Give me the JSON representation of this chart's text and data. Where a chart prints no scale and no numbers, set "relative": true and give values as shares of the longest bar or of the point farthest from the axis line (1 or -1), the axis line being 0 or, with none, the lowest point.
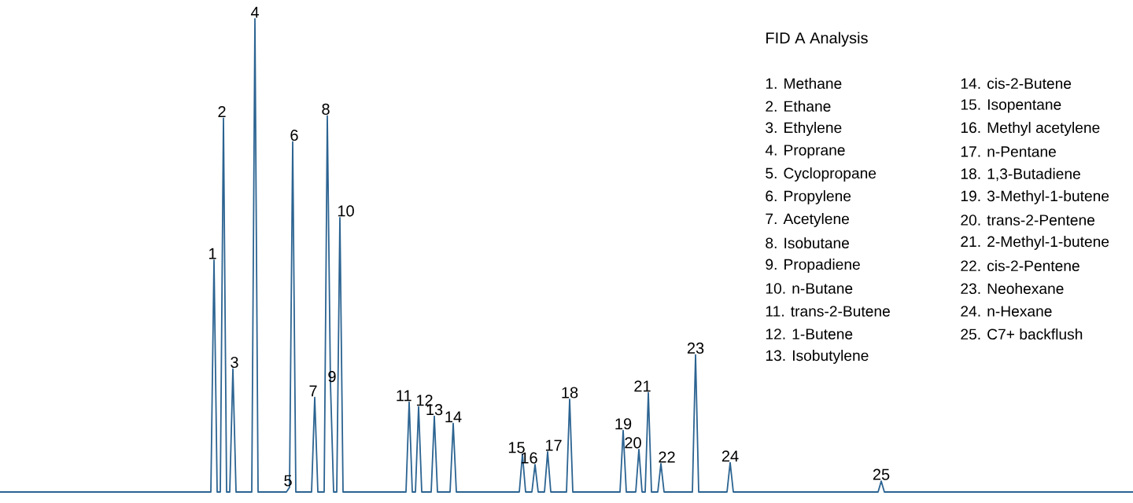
{
  "chart_data": {
    "type": "line",
    "relative": true,
    "title": "FID A Analysis",
    "color": "#2b6391",
    "categories": [
      null,
      null,
      null,
      null,
      null,
      null,
      null,
      null,
      null,
      null,
      null,
      null,
      null,
      null,
      null,
      null,
      null,
      null,
      null,
      null,
      null,
      null,
      null,
      null,
      null,
      null,
      null,
      null,
      null,
      null,
      null,
      null,
      null,
      null,
      null,
      null,
      null,
      null,
      null,
      null,
      null,
      null,
      null,
      null,
      null,
      null,
      null,
      null,
      null,
      null,
      null,
      null,
      null,
      null,
      null,
      null,
      null,
      null,
      null,
      null,
      null,
      null,
      null,
      null,
      null,
      null,
      null,
      null,
      null,
      null,
      null,
      null,
      null,
      null,
      null,
      null,
      null,
      null,
      null,
      null,
      null,
      null,
      null,
      null,
      null,
      null,
      null,
      null,
      null,
      null,
      null,
      null,
      null,
      null,
      null,
      null,
      null,
      null,
      null,
      null,
      null,
      null,
      null,
      null,
      null,
      null,
      null,
      null,
      null,
      null,
      null,
      null,
      null,
      null,
      null,
      null,
      null,
      null,
      null,
      null,
      null,
      null,
      null,
      null,
      null,
      null,
      null,
      null,
      null,
      null,
      null,
      null,
      null,
      null,
      null,
      null,
      null,
      null,
      null,
      null,
      null,
      null,
      null,
      null,
      null,
      null,
      null,
      null,
      null,
      null,
      null,
      null,
      null,
      null,
      null,
      null,
      null,
      null,
      null,
      null,
      null,
      null,
      null,
      null,
      null,
      null,
      null,
      null,
      null,
      null,
      null,
      null,
      null,
      null,
      null,
      null,
      null,
      null,
      null,
      null,
      null,
      null,
      null,
      null,
      null,
      null,
      null,
      null,
      null,
      null,
      null,
      null,
      null,
      null,
      null,
      null,
      null,
      null,
      null,
      null,
      null,
      null,
      null,
      null,
      null,
      null,
      null,
      null,
      null,
      null,
      null,
      null,
      null,
      null,
      null,
      null,
      null,
      null,
      null,
      null,
      null,
      null,
      null,
      null,
      null,
      null,
      null,
      null,
      null,
      null,
      null,
      null,
      null,
      null,
      null,
      null,
      null,
      null,
      null,
      null,
      null,
      null,
      null,
      null,
      null,
      null,
      null,
      null,
      null,
      null,
      null,
      null,
      null,
      null,
      null,
      null,
      null,
      null,
      null,
      null,
      null,
      null,
      null,
      null,
      null,
      null,
      null,
      null,
      null,
      null,
      null,
      null,
      null,
      null,
      null,
      null,
      null,
      null,
      null,
      null,
      null,
      null,
      null,
      null,
      null,
      null,
      null,
      null,
      null,
      null,
      null,
      null,
      null,
      null,
      null,
      null,
      null,
      null,
      null,
      null,
      null,
      null,
      null,
      null,
      null,
      null,
      null,
      null,
      null,
      null,
      null,
      null,
      null,
      null,
      null,
      null,
      null,
      null,
      null,
      null,
      null,
      null,
      null,
      null,
      null,
      null,
      null,
      null,
      null,
      null,
      null,
      null,
      null,
      null,
      null,
      null,
      null,
      null,
      null,
      null,
      null,
      null,
      null,
      null,
      null,
      null,
      null,
      null,
      null,
      null,
      null,
      null,
      null,
      null,
      null,
      null,
      null,
      null,
      null,
      null,
      null
    ],
    "values": [
      0,
      0,
      0,
      0,
      0,
      0,
      0,
      0,
      0,
      0,
      0,
      0,
      0,
      0,
      0,
      0,
      0,
      0,
      0,
      0,
      0,
      0,
      0,
      0,
      0,
      0,
      0,
      0,
      0,
      0,
      0,
      0,
      0,
      0,
      0,
      0,
      0,
      0,
      0,
      0,
      0,
      0,
      0,
      0,
      0,
      0,
      0,
      0,
      0,
      0,
      0,
      0,
      0,
      0,
      0,
      0,
      0,
      0,
      0,
      0,
      0,
      0,
      0,
      0,
      0,
      0,
      0,
      0,
      0.49,
      0,
      0,
      0.79,
      0,
      0,
      0.26,
      0,
      0,
      0,
      0,
      0,
      0,
      1,
      0,
      0,
      0,
      0,
      0,
      0,
      0,
      0,
      0,
      0,
      0.01,
      0.74,
      0,
      0,
      0,
      0,
      0,
      0,
      0.2,
      0,
      0,
      0,
      0.795,
      0.23,
      0,
      0,
      0.58,
      0,
      0,
      0,
      0,
      0,
      0,
      0,
      0,
      0,
      0,
      0,
      0,
      0,
      0,
      0,
      0,
      0,
      0,
      0,
      0,
      0,
      0.19,
      0,
      0,
      0.18,
      0,
      0,
      0,
      0,
      0.16,
      0,
      0,
      0,
      0,
      0,
      0.145,
      0,
      0,
      0,
      0,
      0,
      0,
      0,
      0,
      0,
      0,
      0,
      0,
      0,
      0,
      0,
      0,
      0,
      0,
      0,
      0,
      0,
      0.08,
      0,
      0,
      0,
      0.058,
      0,
      0,
      0,
      0.085,
      0,
      0,
      0,
      0,
      0,
      0,
      0.196,
      0,
      0,
      0,
      0,
      0,
      0,
      0,
      0,
      0,
      0,
      0,
      0,
      0,
      0,
      0,
      0,
      0.13,
      0,
      0,
      0,
      0,
      0.09,
      0,
      0,
      0.21,
      0,
      0,
      0,
      0.06,
      0,
      0,
      0,
      0,
      0,
      0,
      0,
      0,
      0,
      0,
      0.29,
      0,
      0,
      0,
      0,
      0,
      0,
      0,
      0,
      0,
      0,
      0.062,
      0,
      0,
      0,
      0,
      0,
      0,
      0,
      0,
      0,
      0,
      0,
      0,
      0,
      0,
      0,
      0,
      0,
      0,
      0,
      0,
      0,
      0,
      0,
      0,
      0,
      0,
      0,
      0,
      0,
      0,
      0,
      0,
      0,
      0,
      0,
      0,
      0,
      0,
      0,
      0,
      0,
      0,
      0,
      0,
      0,
      0,
      0,
      0.023,
      0,
      0,
      0,
      0,
      0,
      0,
      0,
      0,
      0,
      0,
      0,
      0,
      0,
      0,
      0,
      0,
      0,
      0,
      0,
      0,
      0,
      0,
      0,
      0,
      0,
      0,
      0,
      0,
      0,
      0,
      0,
      0,
      0,
      0,
      0,
      0,
      0,
      0,
      0,
      0,
      0,
      0,
      0,
      0,
      0,
      0,
      0,
      0,
      0,
      0,
      0,
      0,
      0,
      0,
      0,
      0,
      0,
      0,
      0,
      0,
      0,
      0,
      0,
      0,
      0,
      0,
      0,
      0,
      0,
      0,
      0,
      0,
      0,
      0,
      0,
      0,
      0,
      0,
      0,
      0
    ],
    "annotations": [
      {
        "text": "1",
        "y": 0.49
      },
      {
        "text": "2",
        "y": 0.79
      },
      {
        "text": "3",
        "y": 0.26
      },
      {
        "text": "4",
        "y": 1
      },
      {
        "text": "5",
        "y": 0.01
      },
      {
        "text": "6",
        "y": 0.74
      },
      {
        "text": "7",
        "y": 0.2
      },
      {
        "text": "8",
        "y": 0.795
      },
      {
        "text": "9",
        "y": 0.23
      },
      {
        "text": "10",
        "y": 0.58
      },
      {
        "text": "11",
        "y": 0.19
      },
      {
        "text": "12",
        "y": 0.18
      },
      {
        "text": "13",
        "y": 0.16
      },
      {
        "text": "14",
        "y": 0.145
      },
      {
        "text": "15",
        "y": 0.08
      },
      {
        "text": "16",
        "y": 0.058
      },
      {
        "text": "17",
        "y": 0.085
      },
      {
        "text": "18",
        "y": 0.196
      },
      {
        "text": "19",
        "y": 0.13
      },
      {
        "text": "20",
        "y": 0.09
      },
      {
        "text": "21",
        "y": 0.21
      },
      {
        "text": "22",
        "y": 0.06
      },
      {
        "text": "23",
        "y": 0.29
      },
      {
        "text": "24",
        "y": 0.062
      },
      {
        "text": "25",
        "y": 0.023
      },
      "1. Methane",
      "2. Ethane",
      "3. Ethylene",
      "4. Proprane",
      "5. Cyclopropane",
      "6. Propylene",
      "7. Acetylene",
      "8. Isobutane",
      "9. Propadiene",
      "10. n-Butane",
      "11. trans-2-Butene",
      "12. 1-Butene",
      "13. Isobutylene",
      "14. cis-2-Butene",
      "15. Isopentane",
      "16. Methyl acetylene",
      "17. n-Pentane",
      "18. 1,3-Butadiene",
      "19. 3-Methyl-1-butene",
      "20. trans-2-Pentene",
      "21. 2-Methyl-1-butene",
      "22. cis-2-Pentene",
      "23. Neohexane",
      "24. n-Hexane",
      "25. C7+ backflush"
    ]
  }
}
